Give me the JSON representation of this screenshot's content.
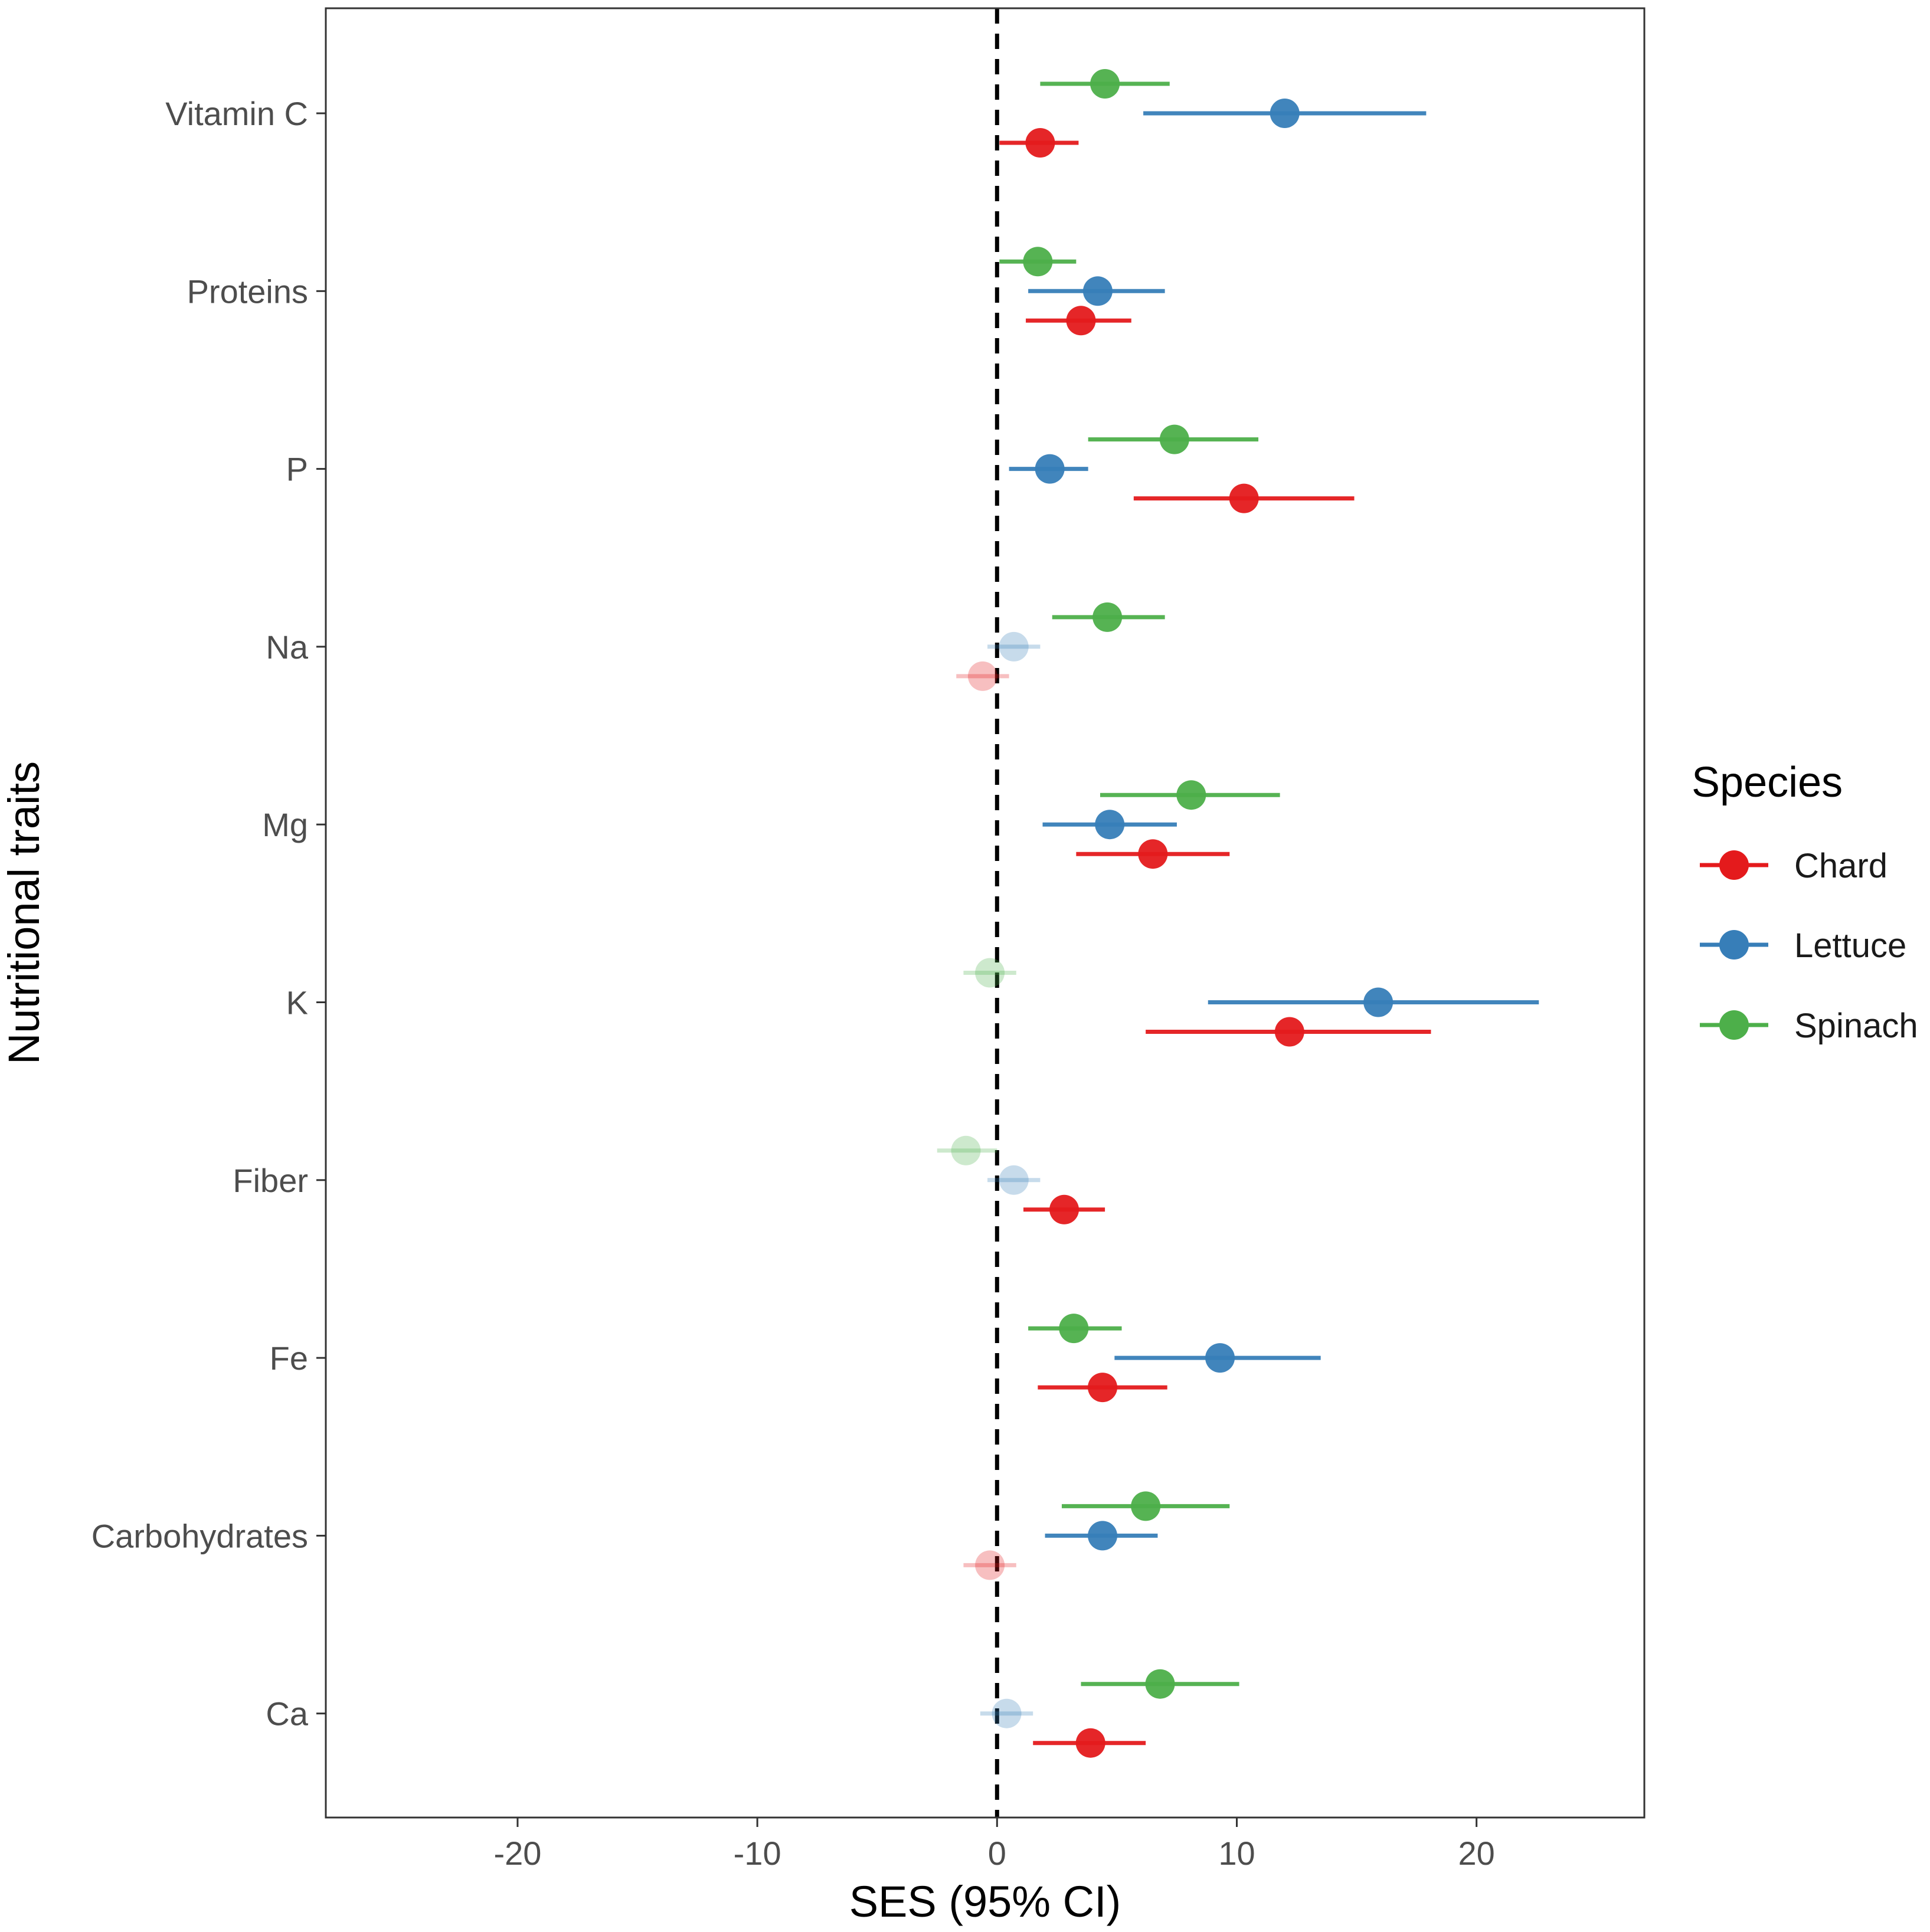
{
  "chart_data": {
    "type": "forest",
    "title": "",
    "xlabel": "SES (95% CI)",
    "ylabel": "Nutritional traits",
    "xlim": [
      -28,
      27
    ],
    "x_ticks": [
      -20,
      -10,
      0,
      10,
      20
    ],
    "x_tick_labels": [
      "-20",
      "-10",
      "0",
      "10",
      "20"
    ],
    "reference_line": 0,
    "categories": [
      "Vitamin C",
      "Proteins",
      "P",
      "Na",
      "Mg",
      "K",
      "Fiber",
      "Fe",
      "Carbohydrates",
      "Ca"
    ],
    "legend": {
      "title": "Species",
      "position": "right"
    },
    "series": [
      {
        "name": "Chard",
        "color": "#e41a1c",
        "points": [
          {
            "trait": "Vitamin C",
            "est": 1.8,
            "lo": 0.1,
            "hi": 3.4,
            "significant": true
          },
          {
            "trait": "Proteins",
            "est": 3.5,
            "lo": 1.2,
            "hi": 5.6,
            "significant": true
          },
          {
            "trait": "P",
            "est": 10.3,
            "lo": 5.7,
            "hi": 14.9,
            "significant": true
          },
          {
            "trait": "Na",
            "est": -0.6,
            "lo": -1.7,
            "hi": 0.5,
            "significant": false
          },
          {
            "trait": "Mg",
            "est": 6.5,
            "lo": 3.3,
            "hi": 9.7,
            "significant": true
          },
          {
            "trait": "K",
            "est": 12.2,
            "lo": 6.2,
            "hi": 18.1,
            "significant": true
          },
          {
            "trait": "Fiber",
            "est": 2.8,
            "lo": 1.1,
            "hi": 4.5,
            "significant": true
          },
          {
            "trait": "Fe",
            "est": 4.4,
            "lo": 1.7,
            "hi": 7.1,
            "significant": true
          },
          {
            "trait": "Carbohydrates",
            "est": -0.3,
            "lo": -1.4,
            "hi": 0.8,
            "significant": false
          },
          {
            "trait": "Ca",
            "est": 3.9,
            "lo": 1.5,
            "hi": 6.2,
            "significant": true
          }
        ]
      },
      {
        "name": "Lettuce",
        "color": "#377eb8",
        "points": [
          {
            "trait": "Vitamin C",
            "est": 12.0,
            "lo": 6.1,
            "hi": 17.9,
            "significant": true
          },
          {
            "trait": "Proteins",
            "est": 4.2,
            "lo": 1.3,
            "hi": 7.0,
            "significant": true
          },
          {
            "trait": "P",
            "est": 2.2,
            "lo": 0.5,
            "hi": 3.8,
            "significant": true
          },
          {
            "trait": "Na",
            "est": 0.7,
            "lo": -0.4,
            "hi": 1.8,
            "significant": false
          },
          {
            "trait": "Mg",
            "est": 4.7,
            "lo": 1.9,
            "hi": 7.5,
            "significant": true
          },
          {
            "trait": "K",
            "est": 15.9,
            "lo": 8.8,
            "hi": 22.6,
            "significant": true
          },
          {
            "trait": "Fiber",
            "est": 0.7,
            "lo": -0.4,
            "hi": 1.8,
            "significant": false
          },
          {
            "trait": "Fe",
            "est": 9.3,
            "lo": 4.9,
            "hi": 13.5,
            "significant": true
          },
          {
            "trait": "Carbohydrates",
            "est": 4.4,
            "lo": 2.0,
            "hi": 6.7,
            "significant": true
          },
          {
            "trait": "Ca",
            "est": 0.4,
            "lo": -0.7,
            "hi": 1.5,
            "significant": false
          }
        ]
      },
      {
        "name": "Spinach",
        "color": "#4daf4a",
        "points": [
          {
            "trait": "Vitamin C",
            "est": 4.5,
            "lo": 1.8,
            "hi": 7.2,
            "significant": true
          },
          {
            "trait": "Proteins",
            "est": 1.7,
            "lo": 0.1,
            "hi": 3.3,
            "significant": true
          },
          {
            "trait": "P",
            "est": 7.4,
            "lo": 3.8,
            "hi": 10.9,
            "significant": true
          },
          {
            "trait": "Na",
            "est": 4.6,
            "lo": 2.3,
            "hi": 7.0,
            "significant": true
          },
          {
            "trait": "Mg",
            "est": 8.1,
            "lo": 4.3,
            "hi": 11.8,
            "significant": true
          },
          {
            "trait": "K",
            "est": -0.3,
            "lo": -1.4,
            "hi": 0.8,
            "significant": false
          },
          {
            "trait": "Fiber",
            "est": -1.3,
            "lo": -2.5,
            "hi": 0.0,
            "significant": false
          },
          {
            "trait": "Fe",
            "est": 3.2,
            "lo": 1.3,
            "hi": 5.2,
            "significant": true
          },
          {
            "trait": "Carbohydrates",
            "est": 6.2,
            "lo": 2.7,
            "hi": 9.7,
            "significant": true
          },
          {
            "trait": "Ca",
            "est": 6.8,
            "lo": 3.5,
            "hi": 10.1,
            "significant": true
          }
        ]
      }
    ]
  }
}
